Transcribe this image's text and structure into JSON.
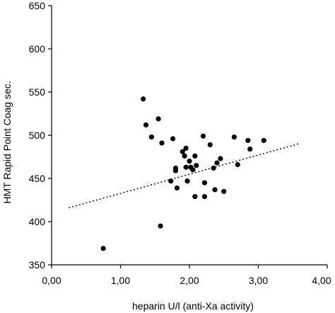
{
  "chart_data": {
    "type": "scatter",
    "title": "",
    "xlabel": "heparin U/l (anti-Xa activity)",
    "ylabel": "HMT Rapid Point Coag sec.",
    "xlim": [
      0,
      4
    ],
    "ylim": [
      350,
      650
    ],
    "x_ticks": [
      "0,00",
      "1,00",
      "2,00",
      "3,00",
      "4,00"
    ],
    "y_ticks": [
      "350",
      "400",
      "450",
      "500",
      "550",
      "600",
      "650"
    ],
    "x_tick_values": [
      0,
      1,
      2,
      3,
      4
    ],
    "y_tick_values": [
      350,
      400,
      450,
      500,
      550,
      600,
      650
    ],
    "grid": false,
    "legend": "none",
    "points": [
      {
        "x": 0.75,
        "y": 369
      },
      {
        "x": 1.33,
        "y": 542
      },
      {
        "x": 1.37,
        "y": 512
      },
      {
        "x": 1.45,
        "y": 498
      },
      {
        "x": 1.55,
        "y": 519
      },
      {
        "x": 1.58,
        "y": 395
      },
      {
        "x": 1.6,
        "y": 491
      },
      {
        "x": 1.73,
        "y": 447
      },
      {
        "x": 1.76,
        "y": 496
      },
      {
        "x": 1.8,
        "y": 462
      },
      {
        "x": 1.8,
        "y": 459
      },
      {
        "x": 1.82,
        "y": 439
      },
      {
        "x": 1.9,
        "y": 481
      },
      {
        "x": 1.93,
        "y": 476
      },
      {
        "x": 1.95,
        "y": 485
      },
      {
        "x": 1.95,
        "y": 463
      },
      {
        "x": 1.97,
        "y": 447
      },
      {
        "x": 2.0,
        "y": 470
      },
      {
        "x": 2.02,
        "y": 463
      },
      {
        "x": 2.05,
        "y": 460
      },
      {
        "x": 2.08,
        "y": 476
      },
      {
        "x": 2.08,
        "y": 429
      },
      {
        "x": 2.1,
        "y": 465
      },
      {
        "x": 2.2,
        "y": 499
      },
      {
        "x": 2.22,
        "y": 445
      },
      {
        "x": 2.22,
        "y": 429
      },
      {
        "x": 2.3,
        "y": 489
      },
      {
        "x": 2.35,
        "y": 462
      },
      {
        "x": 2.37,
        "y": 437
      },
      {
        "x": 2.4,
        "y": 468
      },
      {
        "x": 2.45,
        "y": 473
      },
      {
        "x": 2.5,
        "y": 435
      },
      {
        "x": 2.65,
        "y": 498
      },
      {
        "x": 2.7,
        "y": 466
      },
      {
        "x": 2.85,
        "y": 494
      },
      {
        "x": 2.88,
        "y": 484
      },
      {
        "x": 3.08,
        "y": 494
      }
    ],
    "trendline": {
      "style": "dotted",
      "x1": 0.25,
      "y1": 416,
      "x2": 3.58,
      "y2": 490
    },
    "colors": {
      "points": "#000000",
      "axis": "#000000",
      "trendline": "#000000"
    }
  }
}
